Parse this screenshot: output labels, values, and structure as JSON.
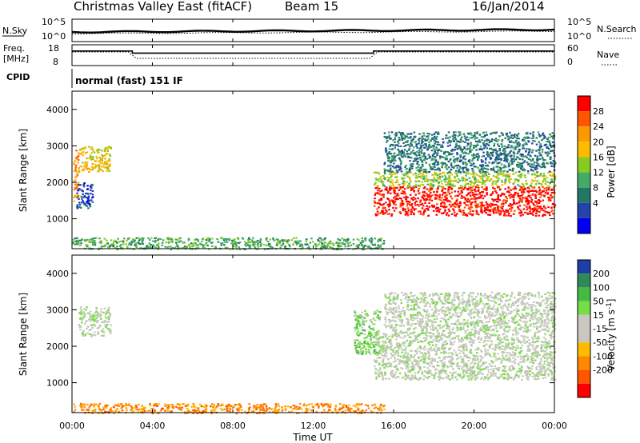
{
  "header": {
    "station": "Christmas Valley East (fitACF)",
    "beam": "Beam 15",
    "date": "16/Jan/2014"
  },
  "summary": {
    "nsky_label": "N.Sky",
    "nsky_ticks": [
      "10^5",
      "10^0"
    ],
    "nsearch_label": "N.Search",
    "freq_label_1": "Freq.",
    "freq_label_2": "[MHz]",
    "freq_ticks": [
      "18",
      "8"
    ],
    "nave_label": "Nave",
    "nave_ticks": [
      "60",
      "0"
    ],
    "cpid_label": "CPID",
    "cpid_value": "normal (fast) 151 IF"
  },
  "axes": {
    "ylabel": "Slant Range [km]",
    "xlabel": "Time UT",
    "yticks": [
      "4000",
      "3000",
      "2000",
      "1000"
    ],
    "xticks": [
      "00:00",
      "04:00",
      "08:00",
      "12:00",
      "16:00",
      "20:00",
      "00:00"
    ]
  },
  "power_scale": {
    "label": "Power [dB]",
    "ticks": [
      "28",
      "24",
      "20",
      "16",
      "12",
      "8",
      "4"
    ],
    "colors": [
      "#ff0000",
      "#ff5500",
      "#ff9900",
      "#ffbb00",
      "#88cc22",
      "#44aa66",
      "#227766",
      "#2244aa",
      "#0000ee"
    ]
  },
  "velocity_scale": {
    "label": "Velocity [m s",
    "label_sup": "-1",
    "label_end": "]",
    "ticks": [
      "200",
      "100",
      "50",
      "15",
      "-15",
      "-50",
      "-100",
      "-200"
    ],
    "colors": [
      "#1d3fa8",
      "#2e8b57",
      "#44bb44",
      "#77dd44",
      "#c8c8c0",
      "#c8c8c0",
      "#ffbb00",
      "#ff8800",
      "#ff5500",
      "#ff0000"
    ]
  },
  "chart_data": [
    {
      "type": "line",
      "name": "Frequency",
      "x_hours": [
        0,
        3.0,
        3.0,
        15.0,
        15.0,
        24
      ],
      "y_mhz": [
        11,
        11,
        10,
        10,
        11,
        11
      ],
      "ylim": [
        8,
        18
      ]
    },
    {
      "type": "heatmap",
      "name": "Power",
      "x_range_hours": [
        0,
        24
      ],
      "y_range_km": [
        180,
        4500
      ],
      "regions": [
        {
          "x": [
            0.05,
            0.3
          ],
          "y": [
            1500,
            2900
          ],
          "level": 6
        },
        {
          "x": [
            0.3,
            1.9
          ],
          "y": [
            2300,
            3000
          ],
          "level": 5
        },
        {
          "x": [
            0.2,
            1.0
          ],
          "y": [
            1300,
            2000
          ],
          "level": 1
        },
        {
          "x": [
            15.0,
            24.0
          ],
          "y": [
            1100,
            1900
          ],
          "level": 8
        },
        {
          "x": [
            15.0,
            24.0
          ],
          "y": [
            1900,
            2300
          ],
          "level": 4
        },
        {
          "x": [
            15.5,
            24.0
          ],
          "y": [
            2300,
            3400
          ],
          "level": 2
        },
        {
          "x": [
            0.0,
            15.5
          ],
          "y": [
            180,
            500
          ],
          "level": 3
        }
      ]
    },
    {
      "type": "heatmap",
      "name": "Velocity",
      "x_range_hours": [
        0,
        24
      ],
      "y_range_km": [
        180,
        4500
      ],
      "regions": [
        {
          "x": [
            0.3,
            1.9
          ],
          "y": [
            2300,
            3100
          ],
          "level": 4
        },
        {
          "x": [
            15.0,
            24.0
          ],
          "y": [
            1100,
            2400
          ],
          "level": 4
        },
        {
          "x": [
            15.5,
            24.0
          ],
          "y": [
            2400,
            3500
          ],
          "level": 4
        },
        {
          "x": [
            14.0,
            15.3
          ],
          "y": [
            1800,
            3000
          ],
          "level": 3
        },
        {
          "x": [
            0.0,
            15.5
          ],
          "y": [
            180,
            450
          ],
          "level": 7
        }
      ]
    }
  ]
}
